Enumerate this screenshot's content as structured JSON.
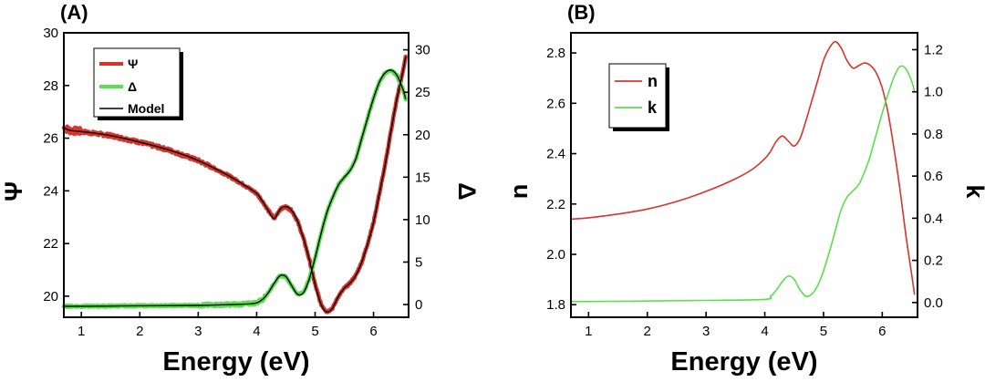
{
  "colors": {
    "red": "#d8342a",
    "green": "#59e04c",
    "black": "#000000"
  },
  "chart_data": [
    {
      "panel": "(A)",
      "type": "line",
      "xlabel": "Energy (eV)",
      "ylabel": "Ψ",
      "ylabel_right": "Δ",
      "xlim": [
        0.7,
        6.6
      ],
      "ylim": [
        19.2,
        30
      ],
      "ylim_right": [
        -1.5,
        32
      ],
      "xticks": [
        1,
        2,
        3,
        4,
        5,
        6
      ],
      "yticks": [
        20,
        22,
        24,
        26,
        28,
        30
      ],
      "yticks_right": [
        0,
        5,
        10,
        15,
        20,
        25,
        30
      ],
      "legend_position": "top-left",
      "legend": [
        "Ψ",
        "Δ",
        "Model"
      ],
      "series": [
        {
          "name": "Ψ",
          "axis": "left",
          "color": "#d8342a",
          "style": "noisy-thick",
          "x": [
            0.7,
            0.8,
            1.0,
            1.5,
            2.0,
            2.5,
            3.0,
            3.5,
            3.8,
            4.0,
            4.1,
            4.2,
            4.3,
            4.4,
            4.5,
            4.6,
            4.7,
            4.8,
            4.9,
            5.0,
            5.1,
            5.2,
            5.3,
            5.4,
            5.5,
            5.6,
            5.7,
            5.8,
            5.9,
            6.0,
            6.1,
            6.2,
            6.3,
            6.4,
            6.5,
            6.55
          ],
          "y": [
            26.4,
            26.3,
            26.25,
            26.1,
            25.85,
            25.55,
            25.15,
            24.6,
            24.2,
            23.9,
            23.6,
            23.25,
            22.95,
            23.3,
            23.4,
            23.25,
            22.85,
            22.2,
            21.4,
            20.45,
            19.7,
            19.4,
            19.55,
            20.0,
            20.3,
            20.5,
            20.8,
            21.3,
            22.0,
            22.8,
            23.9,
            25.0,
            26.3,
            27.5,
            28.5,
            29.1
          ]
        },
        {
          "name": "Δ",
          "axis": "right",
          "color": "#59e04c",
          "style": "noisy-thick",
          "x": [
            0.7,
            1.0,
            2.0,
            3.0,
            3.8,
            4.0,
            4.1,
            4.2,
            4.3,
            4.4,
            4.5,
            4.6,
            4.7,
            4.8,
            4.9,
            5.0,
            5.1,
            5.2,
            5.3,
            5.4,
            5.5,
            5.6,
            5.7,
            5.8,
            5.9,
            6.0,
            6.1,
            6.2,
            6.3,
            6.4,
            6.5,
            6.55
          ],
          "y": [
            -0.2,
            -0.2,
            -0.15,
            -0.1,
            0.05,
            0.2,
            0.6,
            1.4,
            2.5,
            3.4,
            3.3,
            2.2,
            1.2,
            1.4,
            3.0,
            5.5,
            8.3,
            10.8,
            12.6,
            14.1,
            15.0,
            15.8,
            17.2,
            19.6,
            22.0,
            24.3,
            26.2,
            27.3,
            27.6,
            27.0,
            25.4,
            24.2
          ]
        },
        {
          "name": "Model",
          "axis": "left",
          "color": "#000000",
          "style": "thin",
          "x": [
            0.7,
            0.8,
            1.0,
            1.5,
            2.0,
            2.5,
            3.0,
            3.5,
            3.8,
            4.0,
            4.1,
            4.2,
            4.3,
            4.4,
            4.5,
            4.6,
            4.7,
            4.8,
            4.9,
            5.0,
            5.1,
            5.2,
            5.3,
            5.4,
            5.5,
            5.6,
            5.7,
            5.8,
            5.9,
            6.0,
            6.1,
            6.2,
            6.3,
            6.4,
            6.5,
            6.55
          ],
          "y": [
            26.4,
            26.3,
            26.25,
            26.1,
            25.85,
            25.55,
            25.15,
            24.6,
            24.2,
            23.9,
            23.6,
            23.25,
            22.95,
            23.3,
            23.4,
            23.25,
            22.85,
            22.2,
            21.4,
            20.45,
            19.7,
            19.4,
            19.55,
            20.0,
            20.3,
            20.5,
            20.8,
            21.3,
            22.0,
            22.8,
            23.9,
            25.0,
            26.3,
            27.5,
            28.5,
            29.1
          ]
        },
        {
          "name": "Model",
          "axis": "right",
          "color": "#000000",
          "style": "thin",
          "x": [
            0.7,
            1.0,
            2.0,
            3.0,
            3.8,
            4.0,
            4.1,
            4.2,
            4.3,
            4.4,
            4.5,
            4.6,
            4.7,
            4.8,
            4.9,
            5.0,
            5.1,
            5.2,
            5.3,
            5.4,
            5.5,
            5.6,
            5.7,
            5.8,
            5.9,
            6.0,
            6.1,
            6.2,
            6.3,
            6.4,
            6.5,
            6.55
          ],
          "y": [
            -0.2,
            -0.2,
            -0.15,
            -0.1,
            0.05,
            0.2,
            0.6,
            1.4,
            2.5,
            3.4,
            3.3,
            2.2,
            1.2,
            1.4,
            3.0,
            5.5,
            8.3,
            10.8,
            12.6,
            14.1,
            15.0,
            15.8,
            17.2,
            19.6,
            22.0,
            24.3,
            26.2,
            27.3,
            27.6,
            27.0,
            25.4,
            24.2
          ]
        }
      ]
    },
    {
      "panel": "(B)",
      "type": "line",
      "xlabel": "Energy (eV)",
      "ylabel": "n",
      "ylabel_right": "k",
      "xlim": [
        0.7,
        6.6
      ],
      "ylim": [
        1.75,
        2.88
      ],
      "ylim_right": [
        -0.07,
        1.28
      ],
      "xticks": [
        1,
        2,
        3,
        4,
        5,
        6
      ],
      "yticks": [
        1.8,
        2.0,
        2.2,
        2.4,
        2.6,
        2.8
      ],
      "ytick_labels": [
        "1.8",
        "2.0",
        "2.2",
        "2.4",
        "2.6",
        "2.8"
      ],
      "yticks_right": [
        0.0,
        0.2,
        0.4,
        0.6,
        0.8,
        1.0,
        1.2
      ],
      "yticks_right_labels": [
        "0.0",
        "0.2",
        "0.4",
        "0.6",
        "0.8",
        "1.0",
        "1.2"
      ],
      "legend_position": "top-left",
      "legend": [
        "n",
        "k"
      ],
      "series": [
        {
          "name": "n",
          "axis": "left",
          "color": "#d8342a",
          "style": "smooth",
          "x": [
            0.7,
            1.0,
            1.5,
            2.0,
            2.5,
            3.0,
            3.5,
            3.8,
            4.0,
            4.1,
            4.2,
            4.3,
            4.4,
            4.5,
            4.6,
            4.7,
            4.8,
            4.9,
            5.0,
            5.1,
            5.2,
            5.3,
            5.4,
            5.5,
            5.6,
            5.7,
            5.8,
            5.9,
            6.0,
            6.1,
            6.2,
            6.3,
            6.4,
            6.5,
            6.55
          ],
          "y": [
            2.14,
            2.145,
            2.16,
            2.18,
            2.21,
            2.25,
            2.3,
            2.34,
            2.38,
            2.41,
            2.45,
            2.47,
            2.45,
            2.43,
            2.46,
            2.53,
            2.61,
            2.69,
            2.77,
            2.82,
            2.845,
            2.82,
            2.77,
            2.74,
            2.75,
            2.76,
            2.75,
            2.72,
            2.66,
            2.56,
            2.42,
            2.26,
            2.08,
            1.92,
            1.84
          ]
        },
        {
          "name": "k",
          "axis": "right",
          "color": "#59e04c",
          "style": "smooth",
          "x": [
            0.7,
            1.0,
            2.0,
            3.0,
            4.0,
            4.1,
            4.2,
            4.3,
            4.4,
            4.5,
            4.6,
            4.7,
            4.8,
            4.9,
            5.0,
            5.1,
            5.2,
            5.3,
            5.4,
            5.5,
            5.6,
            5.7,
            5.8,
            5.9,
            6.0,
            6.1,
            6.2,
            6.3,
            6.4,
            6.5,
            6.55
          ],
          "y": [
            0.005,
            0.005,
            0.007,
            0.01,
            0.015,
            0.03,
            0.06,
            0.1,
            0.125,
            0.11,
            0.06,
            0.03,
            0.04,
            0.08,
            0.15,
            0.24,
            0.34,
            0.44,
            0.5,
            0.53,
            0.56,
            0.62,
            0.7,
            0.8,
            0.9,
            0.99,
            1.07,
            1.12,
            1.11,
            1.05,
            1.0
          ]
        }
      ]
    }
  ]
}
